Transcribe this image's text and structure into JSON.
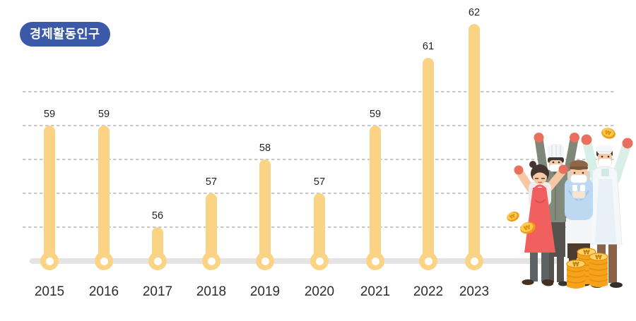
{
  "page": {
    "background": "#ffffff"
  },
  "badge": {
    "label": "경제활동인구",
    "bg_color": "#3B59A9",
    "text_color": "#ffffff"
  },
  "chart_data": {
    "type": "bar",
    "variant": "lollipop-thermometer",
    "title": "경제활동인구",
    "categories": [
      "2015",
      "2016",
      "2017",
      "2018",
      "2019",
      "2020",
      "2021",
      "2022",
      "2023"
    ],
    "values": [
      59,
      59,
      56,
      57,
      58,
      57,
      59,
      61,
      62
    ],
    "xlabel": "",
    "ylabel": "",
    "ylim": [
      55,
      63
    ],
    "gridlines": {
      "values": [
        56,
        57,
        58,
        59,
        60
      ],
      "style": "dashed",
      "color": "#C9C9C9"
    },
    "legend": "none",
    "bar_color": "#FAD385",
    "axis_line_color": "#E4E4E4",
    "value_label_color": "#1f1f1f",
    "category_label_color": "#2d2d2d"
  },
  "illustration": {
    "name": "celebrating-workers-with-coins",
    "description": "Four masked workers cheering with raised fists beside stacks of gold ₩ coins",
    "coin_symbol": "₩"
  }
}
